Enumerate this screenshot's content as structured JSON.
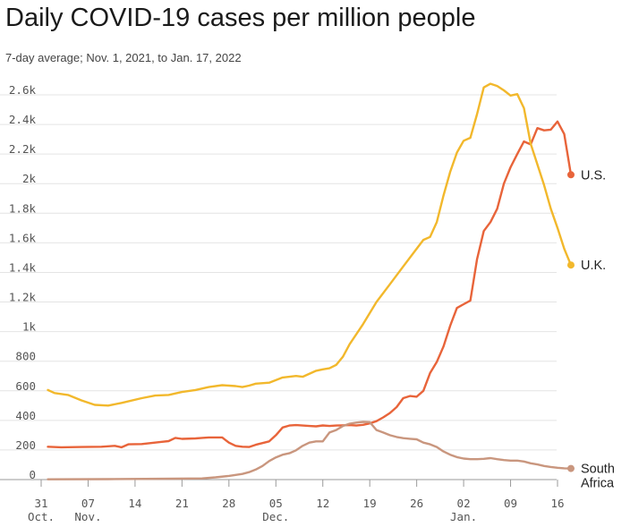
{
  "title": "Daily COVID-19 cases per million people",
  "subtitle": "7-day average; Nov. 1, 2021, to Jan. 17, 2022",
  "chart_data": {
    "type": "line",
    "title": "Daily COVID-19 cases per million people",
    "subtitle": "7-day average; Nov. 1, 2021, to Jan. 17, 2022",
    "xlabel": "",
    "ylabel": "",
    "grid": true,
    "legend": "direct labels at line ends (right)",
    "x_range": [
      "2021-10-31",
      "2022-01-16"
    ],
    "ylim": [
      0,
      2600
    ],
    "y_ticks": [
      0,
      200,
      400,
      600,
      800,
      1000,
      1200,
      1400,
      1600,
      1800,
      2000,
      2200,
      2400,
      2600
    ],
    "y_tick_labels": [
      "0",
      "200",
      "400",
      "600",
      "800",
      "1k",
      "1.2k",
      "1.4k",
      "1.6k",
      "1.8k",
      "2k",
      "2.2k",
      "2.4k",
      "2.6k"
    ],
    "x_ticks": [
      {
        "date": "2021-10-31",
        "day": "31",
        "month": "Oct."
      },
      {
        "date": "2021-11-07",
        "day": "07",
        "month": "Nov."
      },
      {
        "date": "2021-11-14",
        "day": "14",
        "month": ""
      },
      {
        "date": "2021-11-21",
        "day": "21",
        "month": ""
      },
      {
        "date": "2021-11-28",
        "day": "28",
        "month": ""
      },
      {
        "date": "2021-12-05",
        "day": "05",
        "month": "Dec."
      },
      {
        "date": "2021-12-12",
        "day": "12",
        "month": ""
      },
      {
        "date": "2021-12-19",
        "day": "19",
        "month": ""
      },
      {
        "date": "2021-12-26",
        "day": "26",
        "month": ""
      },
      {
        "date": "2022-01-02",
        "day": "02",
        "month": "Jan."
      },
      {
        "date": "2022-01-09",
        "day": "09",
        "month": ""
      },
      {
        "date": "2022-01-16",
        "day": "16",
        "month": ""
      }
    ],
    "series": [
      {
        "name": "U.S.",
        "color": "#e8643a",
        "points": [
          [
            "2021-11-01",
            222
          ],
          [
            "2021-11-03",
            218
          ],
          [
            "2021-11-06",
            220
          ],
          [
            "2021-11-09",
            222
          ],
          [
            "2021-11-11",
            228
          ],
          [
            "2021-11-12",
            218
          ],
          [
            "2021-11-13",
            238
          ],
          [
            "2021-11-15",
            240
          ],
          [
            "2021-11-18",
            255
          ],
          [
            "2021-11-19",
            260
          ],
          [
            "2021-11-20",
            282
          ],
          [
            "2021-11-21",
            275
          ],
          [
            "2021-11-23",
            278
          ],
          [
            "2021-11-24",
            282
          ],
          [
            "2021-11-25",
            285
          ],
          [
            "2021-11-26",
            285
          ],
          [
            "2021-11-27",
            285
          ],
          [
            "2021-11-28",
            250
          ],
          [
            "2021-11-29",
            228
          ],
          [
            "2021-11-30",
            222
          ],
          [
            "2021-12-01",
            220
          ],
          [
            "2021-12-02",
            235
          ],
          [
            "2021-12-04",
            258
          ],
          [
            "2021-12-05",
            300
          ],
          [
            "2021-12-06",
            352
          ],
          [
            "2021-12-07",
            365
          ],
          [
            "2021-12-08",
            368
          ],
          [
            "2021-12-10",
            362
          ],
          [
            "2021-12-11",
            360
          ],
          [
            "2021-12-12",
            366
          ],
          [
            "2021-12-13",
            362
          ],
          [
            "2021-12-14",
            365
          ],
          [
            "2021-12-16",
            368
          ],
          [
            "2021-12-17",
            365
          ],
          [
            "2021-12-18",
            370
          ],
          [
            "2021-12-19",
            380
          ],
          [
            "2021-12-20",
            395
          ],
          [
            "2021-12-21",
            420
          ],
          [
            "2021-12-22",
            450
          ],
          [
            "2021-12-23",
            490
          ],
          [
            "2021-12-24",
            550
          ],
          [
            "2021-12-25",
            565
          ],
          [
            "2021-12-26",
            560
          ],
          [
            "2021-12-27",
            600
          ],
          [
            "2021-12-28",
            720
          ],
          [
            "2021-12-29",
            795
          ],
          [
            "2021-12-30",
            900
          ],
          [
            "2021-12-31",
            1040
          ],
          [
            "2022-01-01",
            1160
          ],
          [
            "2022-01-02",
            1185
          ],
          [
            "2022-01-03",
            1210
          ],
          [
            "2022-01-04",
            1490
          ],
          [
            "2022-01-05",
            1680
          ],
          [
            "2022-01-06",
            1740
          ],
          [
            "2022-01-07",
            1830
          ],
          [
            "2022-01-08",
            2000
          ],
          [
            "2022-01-09",
            2110
          ],
          [
            "2022-01-10",
            2200
          ],
          [
            "2022-01-11",
            2285
          ],
          [
            "2022-01-12",
            2265
          ],
          [
            "2022-01-13",
            2375
          ],
          [
            "2022-01-14",
            2360
          ],
          [
            "2022-01-15",
            2365
          ],
          [
            "2022-01-16",
            2420
          ],
          [
            "2022-01-17",
            2335
          ],
          [
            "2022-01-18",
            2060
          ]
        ]
      },
      {
        "name": "U.K.",
        "color": "#f2b82c",
        "points": [
          [
            "2021-11-01",
            605
          ],
          [
            "2021-11-02",
            585
          ],
          [
            "2021-11-04",
            572
          ],
          [
            "2021-11-06",
            535
          ],
          [
            "2021-11-08",
            505
          ],
          [
            "2021-11-10",
            500
          ],
          [
            "2021-11-12",
            518
          ],
          [
            "2021-11-15",
            550
          ],
          [
            "2021-11-17",
            568
          ],
          [
            "2021-11-19",
            572
          ],
          [
            "2021-11-21",
            592
          ],
          [
            "2021-11-23",
            605
          ],
          [
            "2021-11-25",
            625
          ],
          [
            "2021-11-27",
            638
          ],
          [
            "2021-11-29",
            632
          ],
          [
            "2021-11-30",
            625
          ],
          [
            "2021-12-01",
            635
          ],
          [
            "2021-12-02",
            648
          ],
          [
            "2021-12-04",
            655
          ],
          [
            "2021-12-06",
            690
          ],
          [
            "2021-12-08",
            700
          ],
          [
            "2021-12-09",
            695
          ],
          [
            "2021-12-11",
            735
          ],
          [
            "2021-12-12",
            745
          ],
          [
            "2021-12-13",
            752
          ],
          [
            "2021-12-14",
            775
          ],
          [
            "2021-12-15",
            830
          ],
          [
            "2021-12-16",
            915
          ],
          [
            "2021-12-18",
            1050
          ],
          [
            "2021-12-20",
            1200
          ],
          [
            "2021-12-22",
            1320
          ],
          [
            "2021-12-24",
            1440
          ],
          [
            "2021-12-26",
            1560
          ],
          [
            "2021-12-27",
            1620
          ],
          [
            "2021-12-28",
            1640
          ],
          [
            "2021-12-29",
            1740
          ],
          [
            "2021-12-30",
            1920
          ],
          [
            "2021-12-31",
            2080
          ],
          [
            "2022-01-01",
            2210
          ],
          [
            "2022-01-02",
            2290
          ],
          [
            "2022-01-03",
            2310
          ],
          [
            "2022-01-04",
            2470
          ],
          [
            "2022-01-05",
            2650
          ],
          [
            "2022-01-06",
            2675
          ],
          [
            "2022-01-07",
            2660
          ],
          [
            "2022-01-08",
            2630
          ],
          [
            "2022-01-09",
            2595
          ],
          [
            "2022-01-10",
            2605
          ],
          [
            "2022-01-11",
            2510
          ],
          [
            "2022-01-12",
            2270
          ],
          [
            "2022-01-13",
            2130
          ],
          [
            "2022-01-14",
            1990
          ],
          [
            "2022-01-15",
            1830
          ],
          [
            "2022-01-16",
            1700
          ],
          [
            "2022-01-17",
            1560
          ],
          [
            "2022-01-18",
            1450
          ]
        ]
      },
      {
        "name": "South Africa",
        "color": "#c9967e",
        "points": [
          [
            "2021-11-01",
            2
          ],
          [
            "2021-11-10",
            3
          ],
          [
            "2021-11-20",
            6
          ],
          [
            "2021-11-24",
            8
          ],
          [
            "2021-11-26",
            15
          ],
          [
            "2021-11-28",
            25
          ],
          [
            "2021-11-30",
            38
          ],
          [
            "2021-12-01",
            50
          ],
          [
            "2021-12-02",
            68
          ],
          [
            "2021-12-03",
            92
          ],
          [
            "2021-12-04",
            125
          ],
          [
            "2021-12-05",
            150
          ],
          [
            "2021-12-06",
            168
          ],
          [
            "2021-12-07",
            178
          ],
          [
            "2021-12-08",
            198
          ],
          [
            "2021-12-09",
            228
          ],
          [
            "2021-12-10",
            250
          ],
          [
            "2021-12-11",
            258
          ],
          [
            "2021-12-12",
            258
          ],
          [
            "2021-12-13",
            318
          ],
          [
            "2021-12-14",
            335
          ],
          [
            "2021-12-15",
            362
          ],
          [
            "2021-12-16",
            378
          ],
          [
            "2021-12-17",
            385
          ],
          [
            "2021-12-18",
            390
          ],
          [
            "2021-12-19",
            388
          ],
          [
            "2021-12-20",
            335
          ],
          [
            "2021-12-21",
            318
          ],
          [
            "2021-12-22",
            300
          ],
          [
            "2021-12-23",
            288
          ],
          [
            "2021-12-24",
            280
          ],
          [
            "2021-12-25",
            276
          ],
          [
            "2021-12-26",
            272
          ],
          [
            "2021-12-27",
            250
          ],
          [
            "2021-12-28",
            238
          ],
          [
            "2021-12-29",
            220
          ],
          [
            "2021-12-30",
            190
          ],
          [
            "2021-12-31",
            168
          ],
          [
            "2022-01-01",
            152
          ],
          [
            "2022-01-02",
            142
          ],
          [
            "2022-01-03",
            138
          ],
          [
            "2022-01-04",
            138
          ],
          [
            "2022-01-05",
            140
          ],
          [
            "2022-01-06",
            145
          ],
          [
            "2022-01-07",
            138
          ],
          [
            "2022-01-08",
            132
          ],
          [
            "2022-01-09",
            128
          ],
          [
            "2022-01-10",
            128
          ],
          [
            "2022-01-11",
            122
          ],
          [
            "2022-01-12",
            110
          ],
          [
            "2022-01-13",
            102
          ],
          [
            "2022-01-14",
            92
          ],
          [
            "2022-01-15",
            85
          ],
          [
            "2022-01-16",
            80
          ],
          [
            "2022-01-17",
            76
          ],
          [
            "2022-01-18",
            75
          ]
        ]
      }
    ],
    "end_labels": [
      {
        "series": "U.S.",
        "lines": [
          "U.S."
        ]
      },
      {
        "series": "U.K.",
        "lines": [
          "U.K."
        ]
      },
      {
        "series": "South Africa",
        "lines": [
          "South",
          "Africa"
        ]
      }
    ]
  }
}
